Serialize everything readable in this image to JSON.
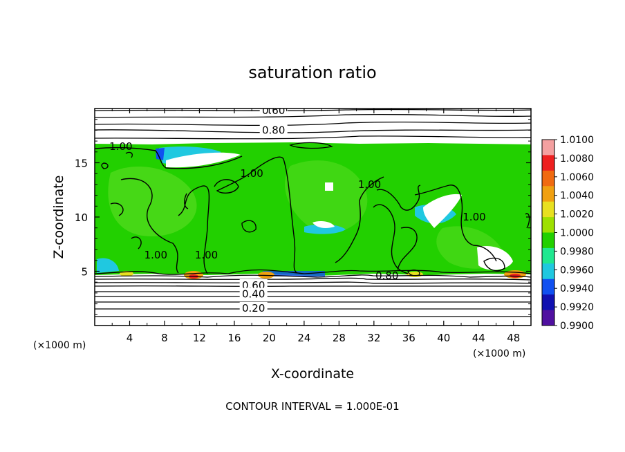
{
  "chart_data": {
    "type": "heatmap",
    "title": "saturation ratio",
    "xlabel": "X-coordinate",
    "ylabel": "Z-coordinate",
    "x_unit_left": "(×1000 m)",
    "x_unit_right": "(×1000 m)",
    "footer": "CONTOUR INTERVAL = 1.000E-01",
    "xlim": [
      0,
      50
    ],
    "ylim": [
      0,
      20
    ],
    "x_ticks": [
      "4",
      "8",
      "12",
      "16",
      "20",
      "24",
      "28",
      "32",
      "36",
      "40",
      "44",
      "48"
    ],
    "y_ticks": [
      "5",
      "10",
      "15"
    ],
    "colorbar": {
      "ticks": [
        "1.0100",
        "1.0080",
        "1.0060",
        "1.0040",
        "1.0020",
        "1.0000",
        "0.9980",
        "0.9960",
        "0.9940",
        "0.9920",
        "0.9900"
      ],
      "colors": [
        "#f4a0a0",
        "#ee2020",
        "#f06a10",
        "#f0a010",
        "#e8e020",
        "#9ee000",
        "#22d000",
        "#20e890",
        "#20c8e0",
        "#1050f0",
        "#1010b0",
        "#5010a0"
      ]
    },
    "contour_labels": [
      {
        "text": "0.60",
        "x": 20.5,
        "z": 19.8
      },
      {
        "text": "0.80",
        "x": 20.5,
        "z": 18.0
      },
      {
        "text": "1.00",
        "x": 3.0,
        "z": 16.5
      },
      {
        "text": "1.00",
        "x": 18.0,
        "z": 14.0
      },
      {
        "text": "1.00",
        "x": 31.5,
        "z": 13.0
      },
      {
        "text": "1.00",
        "x": 43.5,
        "z": 10.0
      },
      {
        "text": "1.00",
        "x": 7.0,
        "z": 6.5
      },
      {
        "text": "1.00",
        "x": 12.8,
        "z": 6.5
      },
      {
        "text": "0.80",
        "x": 33.5,
        "z": 4.6
      },
      {
        "text": "0.60",
        "x": 18.2,
        "z": 3.7
      },
      {
        "text": "0.40",
        "x": 18.2,
        "z": 2.9
      },
      {
        "text": "0.20",
        "x": 18.2,
        "z": 1.6
      }
    ],
    "saturated_region": {
      "z_bottom": 4.8,
      "z_top": 16.8,
      "value": 1.0
    }
  }
}
